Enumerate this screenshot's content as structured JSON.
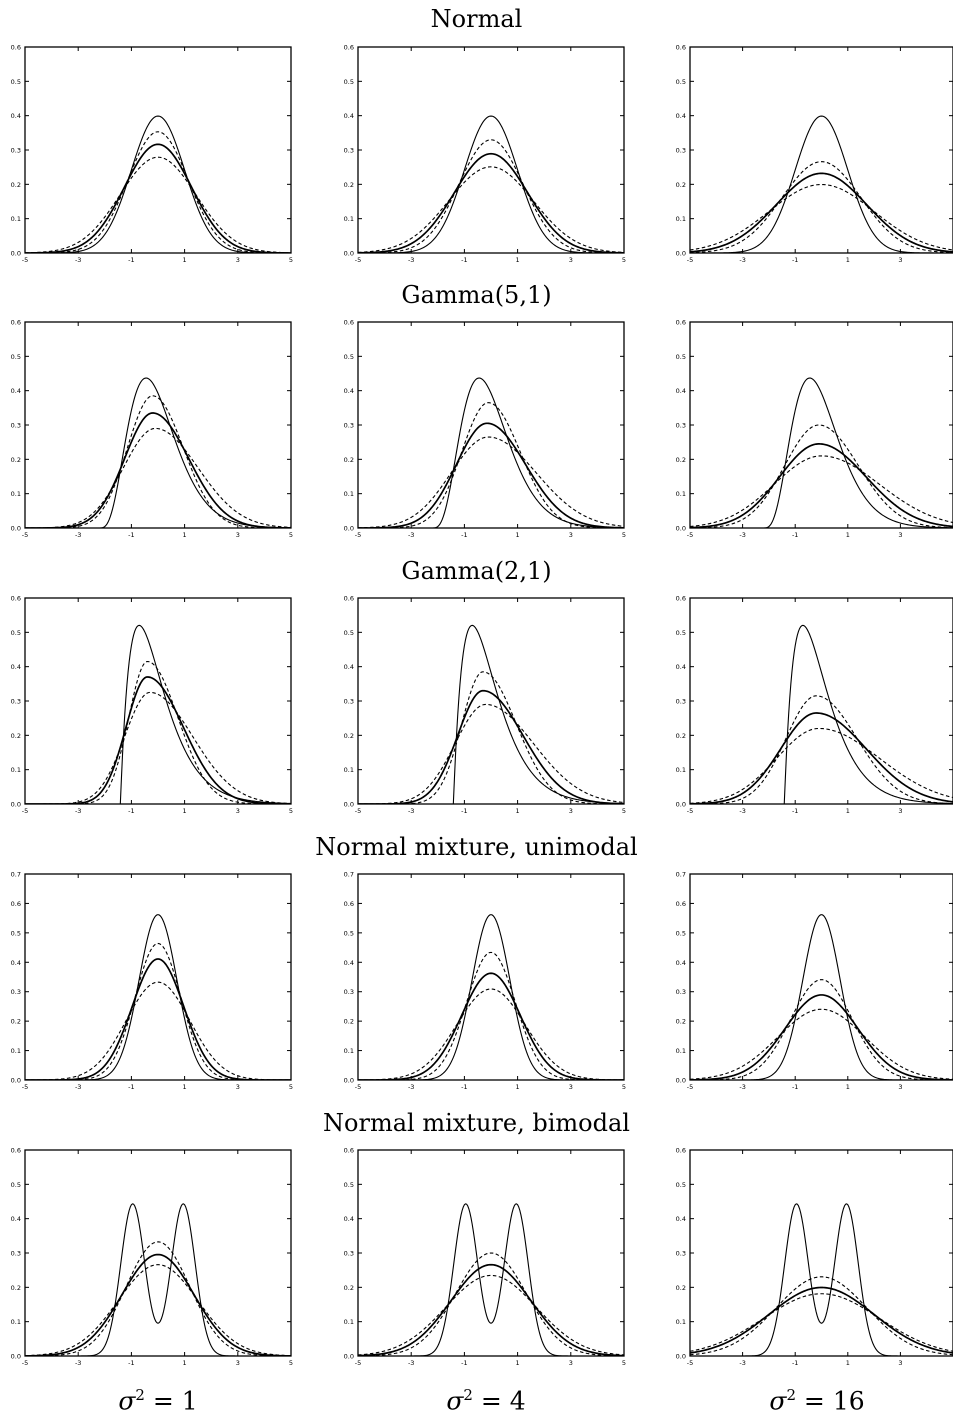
{
  "figure": {
    "row_titles": [
      "Normal",
      "Gamma(5,1)",
      "Gamma(2,1)",
      "Normal mixture, unimodal",
      "Normal mixture, bimodal"
    ],
    "column_labels": [
      {
        "symbol": "σ",
        "power": "2",
        "rest": " = 1"
      },
      {
        "symbol": "σ",
        "power": "2",
        "rest": " = 4"
      },
      {
        "symbol": "σ",
        "power": "2",
        "rest": " = 16"
      }
    ],
    "line_styles": {
      "true_density": "solid thin",
      "estimate": "solid",
      "bounds": "dashed"
    }
  },
  "chart_data": [
    {
      "type": "line",
      "row": 0,
      "col": 0,
      "xticks": [
        "-5",
        "-3",
        "-1",
        "1",
        "3",
        "5"
      ],
      "yticks": [
        "0.0",
        "0.1",
        "0.2",
        "0.3",
        "0.4",
        "0.5",
        "0.6"
      ],
      "xlim": [
        -5,
        5
      ],
      "ylim": [
        0,
        0.6
      ],
      "series": [
        {
          "style": "true",
          "kind": "normal",
          "mu": 0,
          "sd": 1
        },
        {
          "style": "estimate",
          "kind": "normal",
          "mu": 0,
          "sd": 1.26
        },
        {
          "style": "upper",
          "kind": "normal",
          "mu": 0,
          "sd": 1.13
        },
        {
          "style": "lower",
          "kind": "normal",
          "mu": 0,
          "sd": 1.43
        }
      ]
    },
    {
      "type": "line",
      "row": 0,
      "col": 1,
      "xticks": [
        "-5",
        "-3",
        "-1",
        "1",
        "3",
        "5"
      ],
      "yticks": [
        "0.0",
        "0.1",
        "0.2",
        "0.3",
        "0.4",
        "0.5",
        "0.6"
      ],
      "xlim": [
        -5,
        5
      ],
      "ylim": [
        0,
        0.6
      ],
      "series": [
        {
          "style": "true",
          "kind": "normal",
          "mu": 0,
          "sd": 1
        },
        {
          "style": "estimate",
          "kind": "normal",
          "mu": 0,
          "sd": 1.38
        },
        {
          "style": "upper",
          "kind": "normal",
          "mu": 0,
          "sd": 1.21
        },
        {
          "style": "lower",
          "kind": "normal",
          "mu": 0,
          "sd": 1.59
        }
      ]
    },
    {
      "type": "line",
      "row": 0,
      "col": 2,
      "xticks": [
        "-5",
        "-3",
        "-1",
        "1",
        "3"
      ],
      "yticks": [
        "0.0",
        "0.1",
        "0.2",
        "0.3",
        "0.4",
        "0.5",
        "0.6"
      ],
      "xlim": [
        -5,
        5
      ],
      "ylim": [
        0,
        0.6
      ],
      "series": [
        {
          "style": "true",
          "kind": "normal",
          "mu": 0,
          "sd": 1
        },
        {
          "style": "estimate",
          "kind": "normal",
          "mu": 0,
          "sd": 1.72
        },
        {
          "style": "upper",
          "kind": "normal",
          "mu": 0,
          "sd": 1.5
        },
        {
          "style": "lower",
          "kind": "normal",
          "mu": 0,
          "sd": 2.0
        }
      ]
    },
    {
      "type": "line",
      "row": 1,
      "col": 0,
      "xticks": [
        "-5",
        "-3",
        "-1",
        "1",
        "3",
        "5"
      ],
      "yticks": [
        "0.0",
        "0.1",
        "0.2",
        "0.3",
        "0.4",
        "0.5",
        "0.6"
      ],
      "xlim": [
        -5,
        5
      ],
      "ylim": [
        0,
        0.6
      ],
      "series": [
        {
          "style": "true",
          "kind": "gamma",
          "shape": 5,
          "scale": 1
        },
        {
          "style": "estimate",
          "kind": "skew",
          "peak": 0.335,
          "mode": -0.2,
          "sl": 1.05,
          "sr": 1.35
        },
        {
          "style": "upper",
          "kind": "skew",
          "peak": 0.385,
          "mode": -0.2,
          "sl": 0.95,
          "sr": 1.15
        },
        {
          "style": "lower",
          "kind": "skew",
          "peak": 0.29,
          "mode": -0.1,
          "sl": 1.2,
          "sr": 1.6
        }
      ]
    },
    {
      "type": "line",
      "row": 1,
      "col": 1,
      "xticks": [
        "-5",
        "-3",
        "-1",
        "1",
        "3",
        "5"
      ],
      "yticks": [
        "0.0",
        "0.1",
        "0.2",
        "0.3",
        "0.4",
        "0.5",
        "0.6"
      ],
      "xlim": [
        -5,
        5
      ],
      "ylim": [
        0,
        0.6
      ],
      "series": [
        {
          "style": "true",
          "kind": "gamma",
          "shape": 5,
          "scale": 1
        },
        {
          "style": "estimate",
          "kind": "skew",
          "peak": 0.305,
          "mode": -0.15,
          "sl": 1.15,
          "sr": 1.45
        },
        {
          "style": "upper",
          "kind": "skew",
          "peak": 0.365,
          "mode": -0.1,
          "sl": 1.0,
          "sr": 1.2
        },
        {
          "style": "lower",
          "kind": "skew",
          "peak": 0.265,
          "mode": -0.1,
          "sl": 1.4,
          "sr": 1.8
        }
      ]
    },
    {
      "type": "line",
      "row": 1,
      "col": 2,
      "xticks": [
        "-5",
        "-3",
        "-1",
        "1",
        "3"
      ],
      "yticks": [
        "0.0",
        "0.1",
        "0.2",
        "0.3",
        "0.4",
        "0.5",
        "0.6"
      ],
      "xlim": [
        -5,
        5
      ],
      "ylim": [
        0,
        0.6
      ],
      "series": [
        {
          "style": "true",
          "kind": "gamma",
          "shape": 5,
          "scale": 1
        },
        {
          "style": "estimate",
          "kind": "skew",
          "peak": 0.245,
          "mode": -0.1,
          "sl": 1.5,
          "sr": 1.8
        },
        {
          "style": "upper",
          "kind": "skew",
          "peak": 0.3,
          "mode": -0.1,
          "sl": 1.3,
          "sr": 1.5
        },
        {
          "style": "lower",
          "kind": "skew",
          "peak": 0.21,
          "mode": 0,
          "sl": 1.8,
          "sr": 2.2
        }
      ]
    },
    {
      "type": "line",
      "row": 2,
      "col": 0,
      "xticks": [
        "-5",
        "-3",
        "-1",
        "1",
        "3",
        "5"
      ],
      "yticks": [
        "0.0",
        "0.1",
        "0.2",
        "0.3",
        "0.4",
        "0.5",
        "0.6"
      ],
      "xlim": [
        -5,
        5
      ],
      "ylim": [
        0,
        0.6
      ],
      "series": [
        {
          "style": "true",
          "kind": "gamma",
          "shape": 2,
          "scale": 1
        },
        {
          "style": "estimate",
          "kind": "skew",
          "peak": 0.37,
          "mode": -0.4,
          "sl": 0.8,
          "sr": 1.35
        },
        {
          "style": "upper",
          "kind": "skew",
          "peak": 0.415,
          "mode": -0.4,
          "sl": 0.7,
          "sr": 1.15
        },
        {
          "style": "lower",
          "kind": "skew",
          "peak": 0.325,
          "mode": -0.3,
          "sl": 0.95,
          "sr": 1.6
        }
      ]
    },
    {
      "type": "line",
      "row": 2,
      "col": 1,
      "xticks": [
        "-5",
        "-3",
        "-1",
        "1",
        "3",
        "5"
      ],
      "yticks": [
        "0.0",
        "0.1",
        "0.2",
        "0.3",
        "0.4",
        "0.5",
        "0.6"
      ],
      "xlim": [
        -5,
        5
      ],
      "ylim": [
        0,
        0.6
      ],
      "series": [
        {
          "style": "true",
          "kind": "gamma",
          "shape": 2,
          "scale": 1
        },
        {
          "style": "estimate",
          "kind": "skew",
          "peak": 0.33,
          "mode": -0.3,
          "sl": 0.95,
          "sr": 1.5
        },
        {
          "style": "upper",
          "kind": "skew",
          "peak": 0.385,
          "mode": -0.3,
          "sl": 0.8,
          "sr": 1.25
        },
        {
          "style": "lower",
          "kind": "skew",
          "peak": 0.29,
          "mode": -0.2,
          "sl": 1.15,
          "sr": 1.8
        }
      ]
    },
    {
      "type": "line",
      "row": 2,
      "col": 2,
      "xticks": [
        "-5",
        "-3",
        "-1",
        "1",
        "3"
      ],
      "yticks": [
        "0.0",
        "0.1",
        "0.2",
        "0.3",
        "0.4",
        "0.5",
        "0.6"
      ],
      "xlim": [
        -5,
        5
      ],
      "ylim": [
        0,
        0.6
      ],
      "series": [
        {
          "style": "true",
          "kind": "gamma",
          "shape": 2,
          "scale": 1
        },
        {
          "style": "estimate",
          "kind": "skew",
          "peak": 0.265,
          "mode": -0.2,
          "sl": 1.35,
          "sr": 1.9
        },
        {
          "style": "upper",
          "kind": "skew",
          "peak": 0.315,
          "mode": -0.2,
          "sl": 1.15,
          "sr": 1.55
        },
        {
          "style": "lower",
          "kind": "skew",
          "peak": 0.22,
          "mode": -0.1,
          "sl": 1.6,
          "sr": 2.3
        }
      ]
    },
    {
      "type": "line",
      "row": 3,
      "col": 0,
      "xticks": [
        "-5",
        "-3",
        "-1",
        "1",
        "3",
        "5"
      ],
      "yticks": [
        "0.0",
        "0.1",
        "0.2",
        "0.3",
        "0.4",
        "0.5",
        "0.6",
        "0.7"
      ],
      "xlim": [
        -5,
        5
      ],
      "ylim": [
        0,
        0.7
      ],
      "series": [
        {
          "style": "true",
          "kind": "normal",
          "mu": 0,
          "sd": 0.71
        },
        {
          "style": "estimate",
          "kind": "normal",
          "mu": 0,
          "sd": 0.97
        },
        {
          "style": "upper",
          "kind": "normal",
          "mu": 0,
          "sd": 0.86
        },
        {
          "style": "lower",
          "kind": "normal",
          "mu": 0,
          "sd": 1.2
        }
      ]
    },
    {
      "type": "line",
      "row": 3,
      "col": 1,
      "xticks": [
        "-5",
        "-3",
        "-1",
        "1",
        "3",
        "5"
      ],
      "yticks": [
        "0.0",
        "0.1",
        "0.2",
        "0.3",
        "0.4",
        "0.5",
        "0.6",
        "0.7"
      ],
      "xlim": [
        -5,
        5
      ],
      "ylim": [
        0,
        0.7
      ],
      "series": [
        {
          "style": "true",
          "kind": "normal",
          "mu": 0,
          "sd": 0.71
        },
        {
          "style": "estimate",
          "kind": "normal",
          "mu": 0,
          "sd": 1.1
        },
        {
          "style": "upper",
          "kind": "normal",
          "mu": 0,
          "sd": 0.92
        },
        {
          "style": "lower",
          "kind": "normal",
          "mu": 0,
          "sd": 1.29
        }
      ]
    },
    {
      "type": "line",
      "row": 3,
      "col": 2,
      "xticks": [
        "-5",
        "-3",
        "-1",
        "1",
        "3"
      ],
      "yticks": [
        "0.0",
        "0.1",
        "0.2",
        "0.3",
        "0.4",
        "0.5",
        "0.6",
        "0.7"
      ],
      "xlim": [
        -5,
        5
      ],
      "ylim": [
        0,
        0.7
      ],
      "series": [
        {
          "style": "true",
          "kind": "normal",
          "mu": 0,
          "sd": 0.71
        },
        {
          "style": "estimate",
          "kind": "normal",
          "mu": 0,
          "sd": 1.38
        },
        {
          "style": "upper",
          "kind": "normal",
          "mu": 0,
          "sd": 1.17
        },
        {
          "style": "lower",
          "kind": "normal",
          "mu": 0,
          "sd": 1.66
        }
      ]
    },
    {
      "type": "line",
      "row": 4,
      "col": 0,
      "xticks": [
        "-5",
        "-3",
        "-1",
        "1",
        "3",
        "5"
      ],
      "yticks": [
        "0.0",
        "0.1",
        "0.2",
        "0.3",
        "0.4",
        "0.5",
        "0.6"
      ],
      "xlim": [
        -5,
        5
      ],
      "ylim": [
        0,
        0.6
      ],
      "series": [
        {
          "style": "true",
          "kind": "bimodal",
          "m": 0.95,
          "sd": 0.45
        },
        {
          "style": "estimate",
          "kind": "normal",
          "mu": 0,
          "sd": 1.35
        },
        {
          "style": "upper",
          "kind": "normal",
          "mu": 0,
          "sd": 1.2
        },
        {
          "style": "lower",
          "kind": "normal",
          "mu": 0,
          "sd": 1.5
        }
      ]
    },
    {
      "type": "line",
      "row": 4,
      "col": 1,
      "xticks": [
        "-5",
        "-3",
        "-1",
        "1",
        "3",
        "5"
      ],
      "yticks": [
        "0.0",
        "0.1",
        "0.2",
        "0.3",
        "0.4",
        "0.5",
        "0.6"
      ],
      "xlim": [
        -5,
        5
      ],
      "ylim": [
        0,
        0.6
      ],
      "series": [
        {
          "style": "true",
          "kind": "bimodal",
          "m": 0.95,
          "sd": 0.45
        },
        {
          "style": "estimate",
          "kind": "normal",
          "mu": 0,
          "sd": 1.5
        },
        {
          "style": "upper",
          "kind": "normal",
          "mu": 0,
          "sd": 1.33
        },
        {
          "style": "lower",
          "kind": "normal",
          "mu": 0,
          "sd": 1.7
        }
      ]
    },
    {
      "type": "line",
      "row": 4,
      "col": 2,
      "xticks": [
        "-5",
        "-3",
        "-1",
        "1",
        "3"
      ],
      "yticks": [
        "0.0",
        "0.1",
        "0.2",
        "0.3",
        "0.4",
        "0.5",
        "0.6"
      ],
      "xlim": [
        -5,
        5
      ],
      "ylim": [
        0,
        0.6
      ],
      "series": [
        {
          "style": "true",
          "kind": "bimodal",
          "m": 0.95,
          "sd": 0.45
        },
        {
          "style": "estimate",
          "kind": "normal",
          "mu": 0,
          "sd": 2.0
        },
        {
          "style": "upper",
          "kind": "normal",
          "mu": 0,
          "sd": 1.73
        },
        {
          "style": "lower",
          "kind": "normal",
          "mu": 0,
          "sd": 2.2
        }
      ]
    }
  ]
}
